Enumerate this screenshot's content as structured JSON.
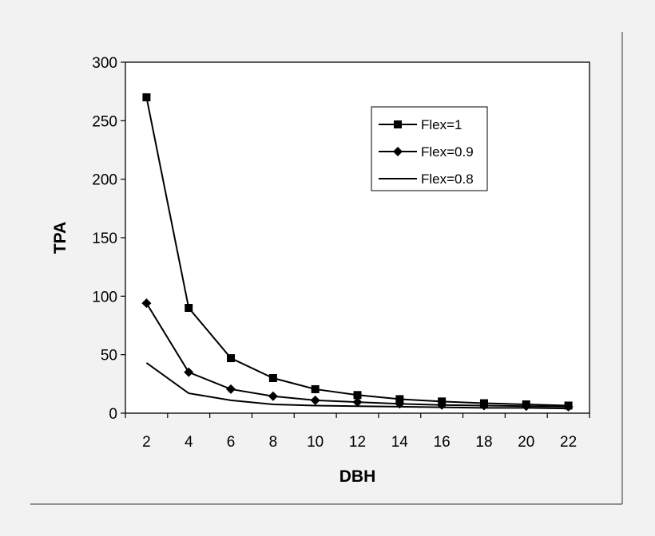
{
  "chart_data": {
    "type": "line",
    "title": "",
    "xlabel": "DBH",
    "ylabel": "TPA",
    "x": [
      2,
      4,
      6,
      8,
      10,
      12,
      14,
      16,
      18,
      20,
      22
    ],
    "xlim": [
      1,
      23
    ],
    "ylim": [
      0,
      300
    ],
    "yticks": [
      0,
      50,
      100,
      150,
      200,
      250,
      300
    ],
    "xticks": [
      2,
      4,
      6,
      8,
      10,
      12,
      14,
      16,
      18,
      20,
      22
    ],
    "grid": false,
    "legend_position": "top-right",
    "series": [
      {
        "name": "Flex=1",
        "marker": "square",
        "values": [
          270,
          90,
          47,
          30,
          20.5,
          15.5,
          12,
          10,
          8.5,
          7.5,
          6.5
        ]
      },
      {
        "name": "Flex=0.9",
        "marker": "diamond",
        "values": [
          94,
          35,
          20.5,
          14.5,
          11,
          9.5,
          8,
          7,
          6.5,
          6,
          5.5
        ]
      },
      {
        "name": "Flex=0.8",
        "marker": "none",
        "values": [
          43,
          17,
          11,
          7.5,
          6.5,
          6,
          5.5,
          5,
          4.5,
          4.5,
          4
        ]
      }
    ]
  }
}
